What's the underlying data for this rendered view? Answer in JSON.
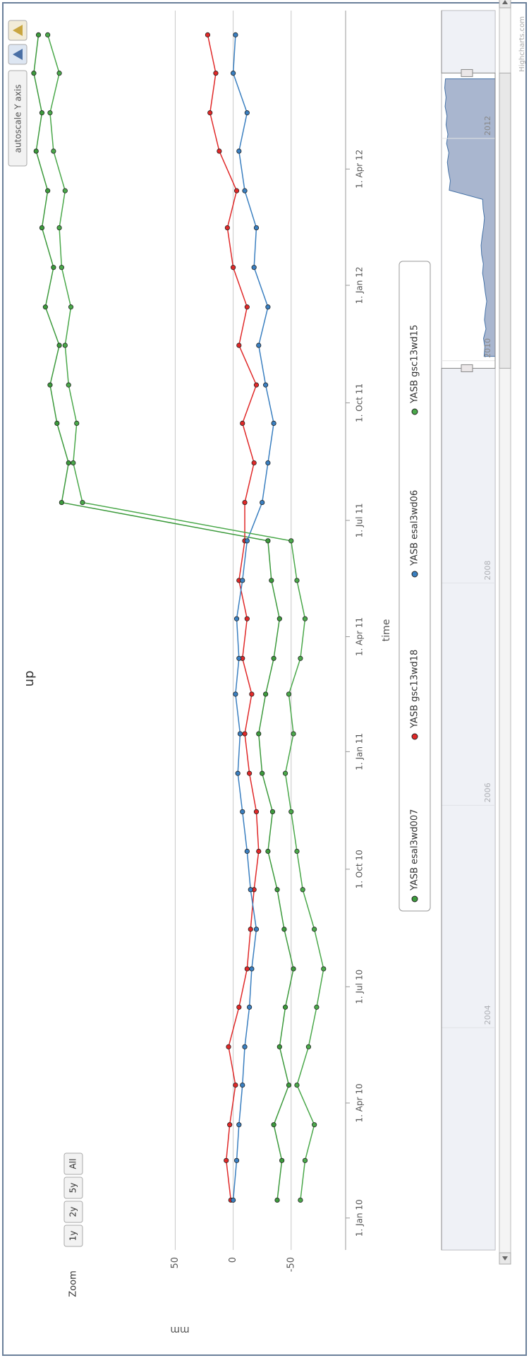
{
  "ui": {
    "zoom_label": "Zoom",
    "zoom_buttons": [
      "1y",
      "2y",
      "5y",
      "All"
    ],
    "autoscale_button": "autoscale Y axis",
    "credits": "Highcharts.com"
  },
  "chart_data": {
    "type": "line",
    "title": "up",
    "x_label": "time",
    "y_label": "mm",
    "x": [
      "2010-01-15",
      "2010-02-15",
      "2010-03-15",
      "2010-04-15",
      "2010-05-15",
      "2010-06-15",
      "2010-07-15",
      "2010-08-15",
      "2010-09-15",
      "2010-10-15",
      "2010-11-15",
      "2010-12-15",
      "2011-01-15",
      "2011-02-15",
      "2011-03-15",
      "2011-04-15",
      "2011-05-15",
      "2011-06-15",
      "2011-07-15",
      "2011-08-15",
      "2011-09-15",
      "2011-10-15",
      "2011-11-15",
      "2011-12-15",
      "2012-01-15",
      "2012-02-15",
      "2012-03-15",
      "2012-04-15",
      "2012-05-15",
      "2012-06-15",
      "2012-07-15"
    ],
    "series": [
      {
        "name": "YASB esal3wd007",
        "color": "#3c9a3c",
        "values": [
          -38,
          -42,
          -35,
          -48,
          -40,
          -45,
          -52,
          -44,
          -38,
          -30,
          -34,
          -25,
          -22,
          -28,
          -35,
          -40,
          -33,
          -30,
          148,
          142,
          152,
          158,
          150,
          162,
          155,
          165,
          160,
          170,
          165,
          172,
          168
        ]
      },
      {
        "name": "YASB gsc13wd18",
        "color": "#e02828",
        "values": [
          2,
          6,
          3,
          -2,
          4,
          -5,
          -12,
          -15,
          -18,
          -22,
          -20,
          -14,
          -10,
          -16,
          -8,
          -12,
          -5,
          -10,
          -10,
          -18,
          -8,
          -20,
          -5,
          -12,
          0,
          5,
          -3,
          12,
          20,
          15,
          22
        ]
      },
      {
        "name": "YASB esal3wd06",
        "color": "#3a7fc0",
        "values": [
          0,
          -3,
          -5,
          -8,
          -10,
          -14,
          -16,
          -20,
          -15,
          -12,
          -8,
          -4,
          -6,
          -2,
          -5,
          -3,
          -8,
          -12,
          -25,
          -30,
          -35,
          -28,
          -22,
          -30,
          -18,
          -20,
          -10,
          -5,
          -12,
          0,
          -2
        ]
      },
      {
        "name": "YASB gsc13wd15",
        "color": "#4aa84a",
        "values": [
          -58,
          -62,
          -70,
          -55,
          -65,
          -72,
          -78,
          -70,
          -60,
          -55,
          -50,
          -45,
          -52,
          -48,
          -58,
          -62,
          -55,
          -50,
          130,
          138,
          135,
          142,
          145,
          140,
          148,
          150,
          145,
          155,
          158,
          150,
          160
        ]
      }
    ],
    "xlim": [
      "2009-12-07",
      "2012-08-03"
    ],
    "xticks": [
      {
        "value": "2010-01-01",
        "label": "1. Jan 10"
      },
      {
        "value": "2010-04-01",
        "label": "1. Apr 10"
      },
      {
        "value": "2010-07-01",
        "label": "1. Jul 10"
      },
      {
        "value": "2010-10-01",
        "label": "1. Oct 10"
      },
      {
        "value": "2011-01-01",
        "label": "1. Jan 11"
      },
      {
        "value": "2011-04-01",
        "label": "1. Apr 11"
      },
      {
        "value": "2011-07-01",
        "label": "1. Jul 11"
      },
      {
        "value": "2011-10-01",
        "label": "1. Oct 11"
      },
      {
        "value": "2012-01-01",
        "label": "1. Jan 12"
      },
      {
        "value": "2012-04-01",
        "label": "1. Apr 12"
      }
    ],
    "ylim": [
      -97,
      189
    ],
    "yticks": [
      -50,
      0,
      50
    ],
    "grid": true,
    "navigator": {
      "xlim": [
        2002,
        2013.15
      ],
      "xticks": [
        2004,
        2006,
        2008,
        2010,
        2012
      ]
    }
  }
}
